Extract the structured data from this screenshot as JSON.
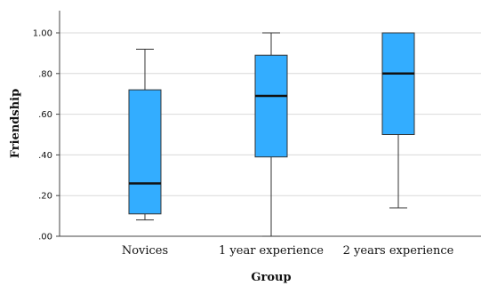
{
  "chart_data": {
    "type": "boxplot",
    "xlabel": "Group",
    "ylabel": "Friendship",
    "ylim": [
      0,
      1.05
    ],
    "yticks": [
      {
        "value": 0.0,
        "label": ".00"
      },
      {
        "value": 0.2,
        "label": ".20"
      },
      {
        "value": 0.4,
        "label": ".40"
      },
      {
        "value": 0.6,
        "label": ".60"
      },
      {
        "value": 0.8,
        "label": ".80"
      },
      {
        "value": 1.0,
        "label": "1.00"
      }
    ],
    "grid": true,
    "categories": [
      "Novices",
      "1 year experience",
      "2 years experience"
    ],
    "boxes": [
      {
        "category": "Novices",
        "whisker_low": 0.08,
        "q1": 0.11,
        "median": 0.26,
        "q3": 0.72,
        "whisker_high": 0.92
      },
      {
        "category": "1 year experience",
        "whisker_low": 0.0,
        "q1": 0.39,
        "median": 0.69,
        "q3": 0.89,
        "whisker_high": 1.0
      },
      {
        "category": "2 years experience",
        "whisker_low": 0.14,
        "q1": 0.5,
        "median": 0.8,
        "q3": 1.0,
        "whisker_high": 1.0
      }
    ],
    "colors": {
      "box_fill": "#33adff",
      "box_stroke": "#333333",
      "median": "#111111",
      "grid": "#d9d9d9",
      "axis": "#444444"
    }
  }
}
